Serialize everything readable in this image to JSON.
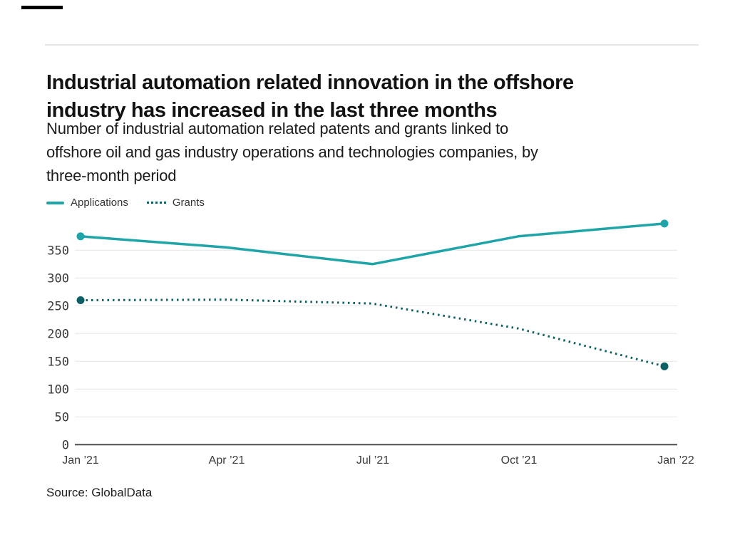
{
  "header": {
    "title_lines": [
      "Industrial automation related innovation in the offshore",
      "industry has increased in the last three months"
    ],
    "subtitle_lines": [
      "Number of industrial automation related patents and grants linked to",
      "offshore oil and gas industry operations and technologies companies, by",
      "three-month period"
    ]
  },
  "chart_data": {
    "type": "line",
    "title": "Industrial automation related innovation in the offshore industry has increased in the last three months",
    "subtitle": "Number of industrial automation related patents and grants linked to offshore oil and gas industry operations and technologies companies, by three-month period",
    "x_categories": [
      "Jan ’21",
      "Apr ’21",
      "Jul ’21",
      "Oct ’21",
      "Jan ’22"
    ],
    "series": [
      {
        "name": "Applications",
        "line_style": "solid",
        "color": "#1fa5a8",
        "marker": "endpoints-only",
        "values": [
          375,
          355,
          325,
          375,
          398
        ]
      },
      {
        "name": "Grants",
        "line_style": "dotted",
        "color": "#0d5f63",
        "marker": "endpoints-only",
        "values": [
          260,
          261,
          254,
          209,
          141
        ]
      }
    ],
    "ylim": [
      0,
      350
    ],
    "ytick_step": 50,
    "grid": true,
    "legend_position": "top-left",
    "source": "Source: GlobalData"
  },
  "colors": {
    "applications": "#1fa5a8",
    "grants": "#0d5f63",
    "gridline": "#e8e8e8",
    "axis_line": "#4f4f4f",
    "tick_text": "#3a3a3a"
  }
}
